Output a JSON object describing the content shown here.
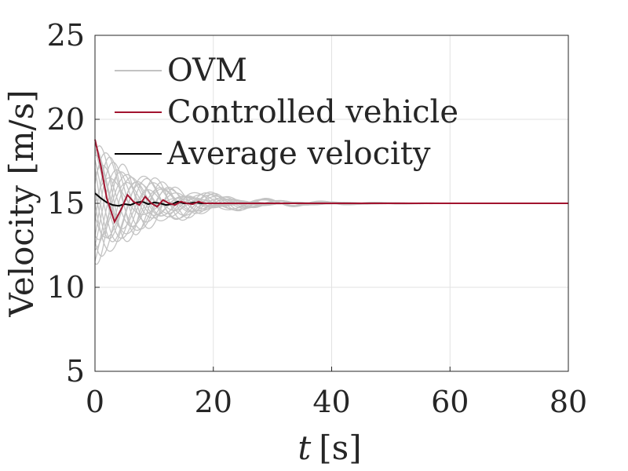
{
  "chart_data": {
    "type": "line",
    "xlabel_var": "t",
    "xlabel_unit": "[s]",
    "ylabel": "Velocity [m/s]",
    "xlim": [
      0,
      80
    ],
    "ylim": [
      5,
      25
    ],
    "xticks": [
      0,
      20,
      40,
      60,
      80
    ],
    "yticks": [
      5,
      10,
      15,
      20,
      25
    ],
    "grid": true,
    "legend_position": "top-left",
    "equilibrium_velocity": 15,
    "colors": {
      "ovm": "#c3c3c3",
      "controlled": "#a2142f",
      "average": "#000000"
    },
    "legend": [
      {
        "key": "ovm",
        "label": "OVM"
      },
      {
        "key": "controlled",
        "label": "Controlled vehicle"
      },
      {
        "key": "average",
        "label": "Average velocity"
      }
    ],
    "series": [
      {
        "name": "Controlled vehicle",
        "key": "controlled",
        "x": [
          0,
          1,
          2,
          3.3,
          4.5,
          5.5,
          6.5,
          7.5,
          8.5,
          9.5,
          10.5,
          11.5,
          12.5,
          13.5,
          14.5,
          15.5,
          16.5,
          17.5,
          18.5,
          20,
          22,
          25,
          30,
          40,
          60,
          80
        ],
        "y": [
          18.8,
          17.2,
          15.3,
          13.9,
          14.7,
          15.5,
          15.1,
          14.9,
          15.4,
          15.0,
          14.8,
          15.2,
          15.0,
          14.9,
          15.1,
          15.0,
          14.95,
          15.1,
          15.0,
          15.0,
          15.0,
          15.0,
          15.0,
          15.0,
          15.0,
          15.0
        ]
      },
      {
        "name": "Average velocity",
        "key": "average",
        "x": [
          0,
          1,
          2,
          3,
          4,
          5,
          6,
          7,
          8,
          9,
          10,
          11,
          12,
          13,
          14,
          15,
          16,
          17,
          18,
          20,
          25,
          30,
          40,
          60,
          80
        ],
        "y": [
          15.6,
          15.3,
          15.05,
          14.9,
          14.85,
          14.95,
          14.9,
          15.05,
          15.1,
          14.95,
          15.05,
          15.0,
          14.9,
          14.95,
          15.1,
          15.0,
          15.0,
          15.05,
          15.0,
          15.0,
          15.0,
          15.0,
          15.0,
          15.0,
          15.0
        ]
      }
    ],
    "ovm_ensemble": {
      "label": "OVM",
      "vehicle_count": 20,
      "first_peak_high": 18.8,
      "first_peak_low": 10.0,
      "settled_value": 15.0,
      "settle_time": 26
    }
  }
}
